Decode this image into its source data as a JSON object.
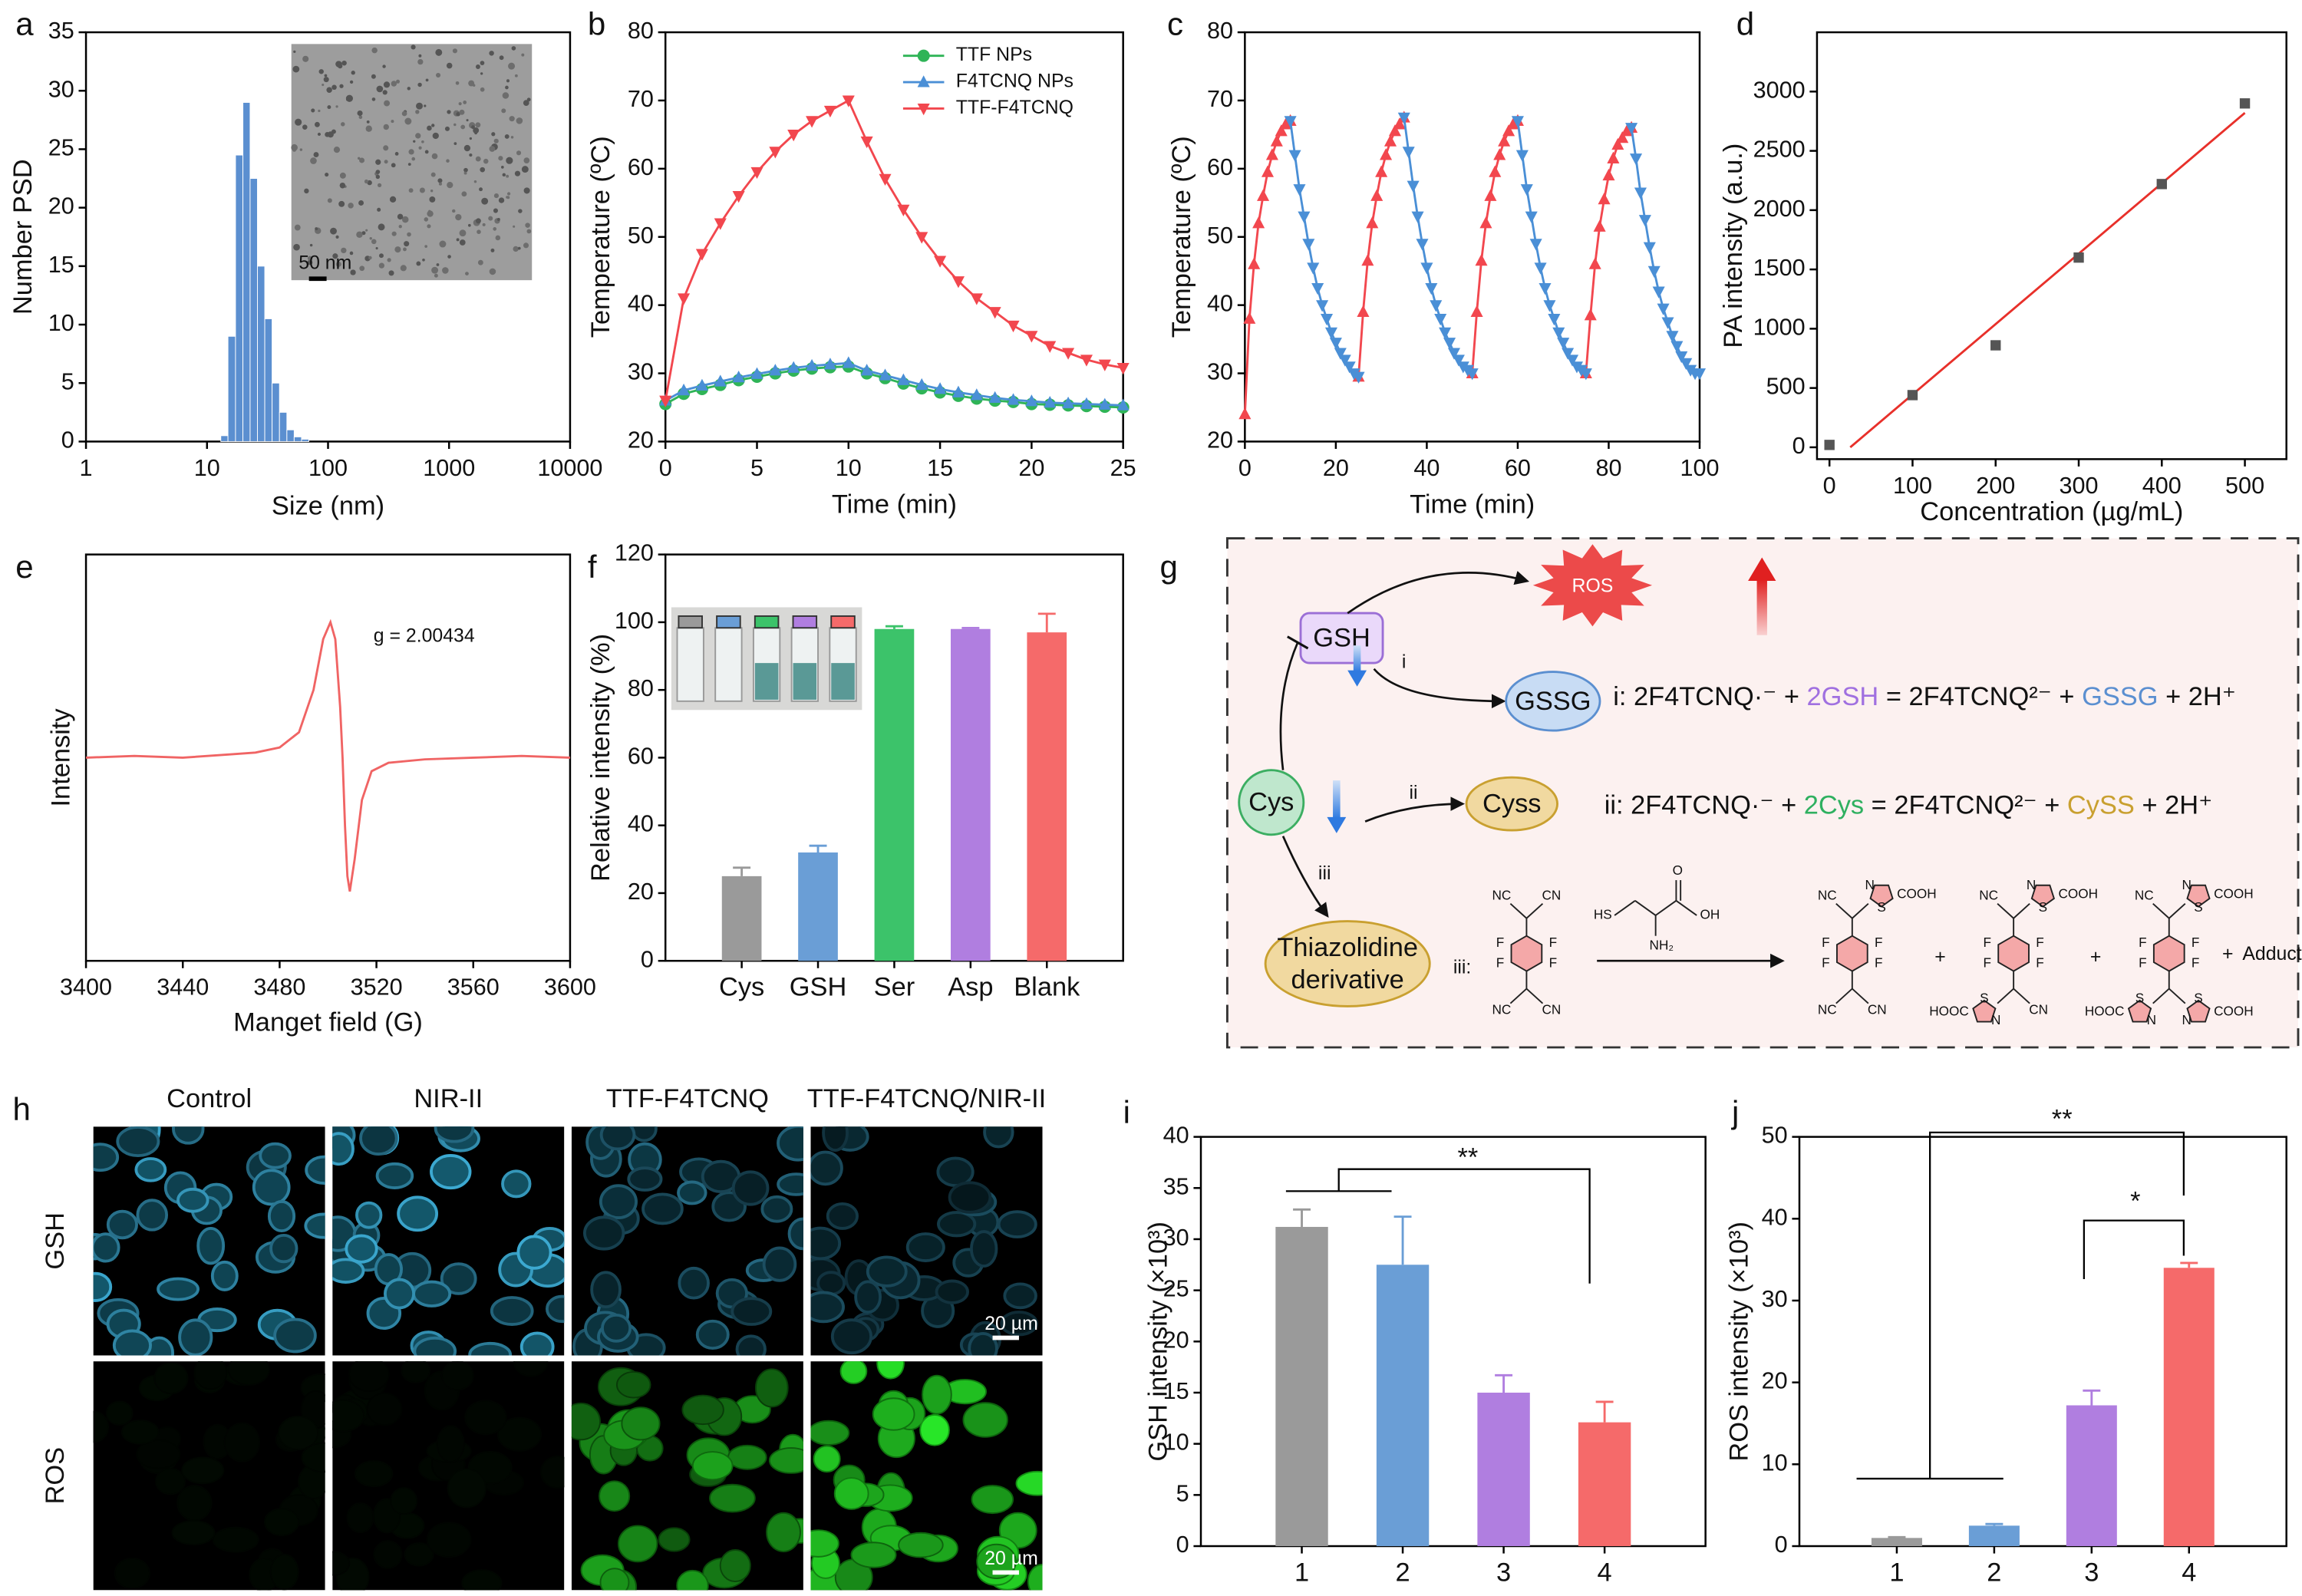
{
  "chart_data": [
    {
      "panel": "a",
      "type": "histogram",
      "xlog": true,
      "bins": [
        13,
        14.9,
        17.2,
        19.8,
        22.7,
        26.1,
        30,
        34.5,
        39.7,
        45.7,
        52.5,
        60.4,
        69.4
      ],
      "values": [
        0.5,
        9,
        24.5,
        29,
        22.5,
        15,
        10.5,
        5,
        2.5,
        1,
        0.4,
        0.2
      ],
      "color": "#5b8fd0",
      "xlim": [
        1,
        10000
      ],
      "xticks": [
        1,
        10,
        100,
        1000,
        10000
      ],
      "ylim": [
        0,
        35
      ],
      "yticks": [
        0,
        5,
        10,
        15,
        20,
        25,
        30,
        35
      ],
      "xlabel": "Size (nm)",
      "ylabel": "Number PSD",
      "inset_label": "50 nm"
    },
    {
      "panel": "b",
      "type": "line",
      "legend": "upper right",
      "x": [
        0,
        1,
        2,
        3,
        4,
        5,
        6,
        7,
        8,
        9,
        10,
        11,
        12,
        13,
        14,
        15,
        16,
        17,
        18,
        19,
        20,
        21,
        22,
        23,
        24,
        25
      ],
      "series": [
        {
          "name": "TTF NPs",
          "color": "#2fb457",
          "marker": "circle",
          "values": [
            25.5,
            27,
            27.7,
            28.3,
            29,
            29.5,
            30,
            30.4,
            30.7,
            30.9,
            31,
            30,
            29.3,
            28.5,
            27.8,
            27.2,
            26.7,
            26.3,
            26,
            25.8,
            25.5,
            25.4,
            25.3,
            25.2,
            25.1,
            25
          ]
        },
        {
          "name": "F4TCNQ NPs",
          "color": "#4a8fd6",
          "marker": "triangle-up",
          "values": [
            26,
            27.5,
            28.2,
            28.8,
            29.4,
            29.9,
            30.4,
            30.8,
            31.1,
            31.3,
            31.5,
            30.4,
            29.7,
            29,
            28.3,
            27.7,
            27.2,
            26.8,
            26.4,
            26.1,
            25.9,
            25.7,
            25.6,
            25.5,
            25.4,
            25.3
          ]
        },
        {
          "name": "TTF-F4TCNQ",
          "color": "#f2474e",
          "marker": "triangle-down",
          "values": [
            26,
            41,
            47.5,
            52,
            56,
            59.5,
            62.5,
            65,
            67,
            68.5,
            70,
            64,
            58.5,
            54,
            50,
            46.5,
            43.5,
            41,
            39,
            37,
            35.5,
            34,
            33,
            32,
            31.3,
            30.8
          ]
        }
      ],
      "xlim": [
        0,
        25
      ],
      "xticks": [
        0,
        5,
        10,
        15,
        20,
        25
      ],
      "ylim": [
        20,
        80
      ],
      "yticks": [
        20,
        30,
        40,
        50,
        60,
        70,
        80
      ],
      "xlabel": "Time (min)",
      "ylabel": "Temperature (ºC)"
    },
    {
      "panel": "c",
      "type": "line",
      "series": [
        {
          "color": "#f2474e",
          "marker": "triangle-up",
          "x": [
            0,
            1,
            2,
            3,
            4,
            5,
            6,
            7,
            8,
            9,
            10,
            17.5,
            25,
            26,
            27,
            28,
            29,
            30,
            31,
            32,
            33,
            34,
            35,
            42.5,
            50,
            51,
            52,
            53,
            54,
            55,
            56,
            57,
            58,
            59,
            60,
            67.5,
            75,
            76,
            77,
            78,
            79,
            80,
            81,
            82,
            83,
            84,
            85
          ],
          "values": [
            24,
            38,
            46,
            52,
            56,
            59.5,
            62,
            64,
            65.5,
            66.5,
            67,
            null,
            29.5,
            39,
            46.5,
            52,
            56,
            59.5,
            62,
            64,
            65.5,
            66.5,
            67.5,
            null,
            30,
            39,
            46.5,
            52,
            56,
            59.5,
            62,
            64,
            65.5,
            66.5,
            67,
            null,
            30,
            38.5,
            46,
            51.5,
            55.5,
            59,
            61.5,
            63.5,
            64.5,
            65.5,
            66
          ]
        },
        {
          "color": "#4a8fd6",
          "marker": "triangle-down",
          "x": [
            10,
            11,
            12,
            13,
            14,
            15,
            16,
            17,
            18,
            19,
            20,
            21,
            22,
            23,
            24,
            25,
            30,
            35,
            36,
            37,
            38,
            39,
            40,
            41,
            42,
            43,
            44,
            45,
            46,
            47,
            48,
            49,
            50,
            55,
            60,
            61,
            62,
            63,
            64,
            65,
            66,
            67,
            68,
            69,
            70,
            71,
            72,
            73,
            74,
            75,
            80,
            85,
            86,
            87,
            88,
            89,
            90,
            91,
            92,
            93,
            94,
            95,
            96,
            97,
            98,
            99,
            100
          ],
          "values": [
            67,
            62,
            57,
            53,
            49,
            45.5,
            42.5,
            40,
            38,
            36,
            34.5,
            33,
            32,
            31,
            30,
            29.5,
            null,
            67.5,
            62.5,
            57.5,
            53,
            49,
            45.5,
            42.5,
            40,
            38,
            36,
            34.5,
            33,
            32,
            31,
            30.5,
            30,
            null,
            67,
            62,
            57,
            53,
            49,
            45.5,
            42.5,
            40,
            38,
            36,
            34.5,
            33,
            32,
            31,
            30.5,
            30,
            null,
            66,
            61.5,
            56.5,
            52.5,
            48.5,
            45,
            42,
            39.5,
            37.5,
            35.5,
            34,
            32.5,
            31.5,
            30.5,
            30,
            30
          ]
        }
      ],
      "xlim": [
        0,
        100
      ],
      "xticks": [
        0,
        20,
        40,
        60,
        80,
        100
      ],
      "ylim": [
        20,
        80
      ],
      "yticks": [
        20,
        30,
        40,
        50,
        60,
        70,
        80
      ],
      "xlabel": "Time (min)",
      "ylabel": "Temperature (ºC)"
    },
    {
      "panel": "d",
      "type": "scatter",
      "color": "#555555",
      "marker": "square",
      "x": [
        0,
        100,
        200,
        300,
        400,
        500
      ],
      "values": [
        20,
        440,
        860,
        1600,
        2220,
        2900
      ],
      "fit": {
        "x": [
          25,
          500
        ],
        "values": [
          0,
          2820
        ],
        "color": "#e8302a"
      },
      "xlim": [
        -15,
        550
      ],
      "xticks": [
        0,
        100,
        200,
        300,
        400,
        500
      ],
      "ylim": [
        -100,
        3500
      ],
      "yticks": [
        0,
        500,
        1000,
        1500,
        2000,
        2500,
        3000
      ],
      "xlabel": "Concentration (µg/mL)",
      "ylabel": "PA intensity (a.u.)"
    },
    {
      "panel": "e",
      "type": "line",
      "x": [
        3400,
        3420,
        3440,
        3460,
        3470,
        3480,
        3488,
        3494,
        3498,
        3501,
        3503,
        3505,
        3506,
        3507,
        3508,
        3509,
        3511,
        3514,
        3518,
        3525,
        3540,
        3560,
        3580,
        3600
      ],
      "series": [
        {
          "color": "#f06464",
          "values": [
            0,
            0.01,
            0,
            0.02,
            0.03,
            0.06,
            0.15,
            0.4,
            0.7,
            0.8,
            0.7,
            0.3,
            0,
            -0.4,
            -0.7,
            -0.79,
            -0.6,
            -0.25,
            -0.08,
            -0.03,
            -0.01,
            0,
            0.01,
            0
          ]
        }
      ],
      "xlim": [
        3400,
        3600
      ],
      "xticks": [
        3400,
        3440,
        3480,
        3520,
        3560,
        3600
      ],
      "ylim": [
        -1.2,
        1.2
      ],
      "annotation": "g = 2.00434",
      "xlabel": "Manget field (G)",
      "ylabel": "Intensity"
    },
    {
      "panel": "f",
      "type": "bar",
      "categories": [
        "Cys",
        "GSH",
        "Ser",
        "Asp",
        "Blank"
      ],
      "values": [
        25,
        32,
        98,
        98,
        97
      ],
      "errors": [
        2.5,
        2,
        0.8,
        0.3,
        5.5
      ],
      "colors": [
        "#9a9a9a",
        "#6a9ed6",
        "#3cc36a",
        "#b07ee0",
        "#f56a6a"
      ],
      "ylim": [
        0,
        120
      ],
      "yticks": [
        0,
        20,
        40,
        60,
        80,
        100,
        120
      ],
      "ylabel": "Relative intensity (%)"
    },
    {
      "panel": "i",
      "type": "bar",
      "categories": [
        "1",
        "2",
        "3",
        "4"
      ],
      "values": [
        31.2,
        27.5,
        15,
        12.1
      ],
      "errors": [
        1.7,
        4.7,
        1.7,
        2
      ],
      "colors": [
        "#9a9a9a",
        "#6a9ed6",
        "#b07ee0",
        "#f56a6a"
      ],
      "ylim": [
        0,
        40
      ],
      "yticks": [
        0,
        5,
        10,
        15,
        20,
        25,
        30,
        35,
        40
      ],
      "ylabel": "GSH intensity (×10³)",
      "significance": [
        "**"
      ]
    },
    {
      "panel": "j",
      "type": "bar",
      "categories": [
        "1",
        "2",
        "3",
        "4"
      ],
      "values": [
        1,
        2.5,
        17.2,
        34
      ],
      "errors": [
        0.1,
        0.2,
        1.8,
        0.6
      ],
      "colors": [
        "#9a9a9a",
        "#6a9ed6",
        "#b07ee0",
        "#f56a6a"
      ],
      "ylim": [
        0,
        50
      ],
      "yticks": [
        0,
        10,
        20,
        30,
        40,
        50
      ],
      "ylabel": "ROS intensity (×10³)",
      "significance": [
        "**",
        "*"
      ]
    }
  ],
  "diagram_g": {
    "panel": "g",
    "nodes": {
      "gsh": "GSH",
      "ros": "ROS",
      "gssg": "GSSG",
      "cys": "Cys",
      "cyss": "Cyss",
      "thiazolidine": [
        "Thiazolidine",
        "derivative"
      ]
    },
    "steps": [
      "i",
      "ii",
      "iii"
    ],
    "equations": [
      [
        "i: 2F4TCNQ·⁻ + ",
        "2GSH",
        " = 2F4TCNQ²⁻ + ",
        "GSSG",
        " + 2H⁺"
      ],
      [
        "ii: 2F4TCNQ·⁻ + ",
        "2Cys",
        " = 2F4TCNQ²⁻ + ",
        "CySS",
        " + 2H⁺"
      ]
    ],
    "reaction": {
      "label": "iii:",
      "plus": "+",
      "adducts": "Adducts",
      "structures": [
        [
          "NC",
          "CN",
          "F",
          "F",
          "F",
          "F",
          "NC",
          "CN"
        ],
        [
          "HS",
          "O",
          "OH",
          "NH₂"
        ],
        [
          "NC",
          "S",
          "N",
          "COOH",
          "F",
          "F",
          "F",
          "F",
          "NC",
          "CN"
        ],
        [
          "NC",
          "S",
          "N",
          "COOH",
          "F",
          "F",
          "F",
          "F",
          "S",
          "N",
          "HOOC",
          "CN"
        ],
        [
          "NC",
          "S",
          "N",
          "COOH",
          "F",
          "F",
          "F",
          "F",
          "S",
          "N",
          "HOOC",
          "S",
          "N",
          "COOH"
        ]
      ]
    }
  },
  "panel_h": {
    "panel": "h",
    "columns": [
      "Control",
      "NIR-II",
      "TTF-F4TCNQ",
      "TTF-F4TCNQ/NIR-II"
    ],
    "rows": [
      "GSH",
      "ROS"
    ],
    "scale_bar": "20 µm"
  }
}
